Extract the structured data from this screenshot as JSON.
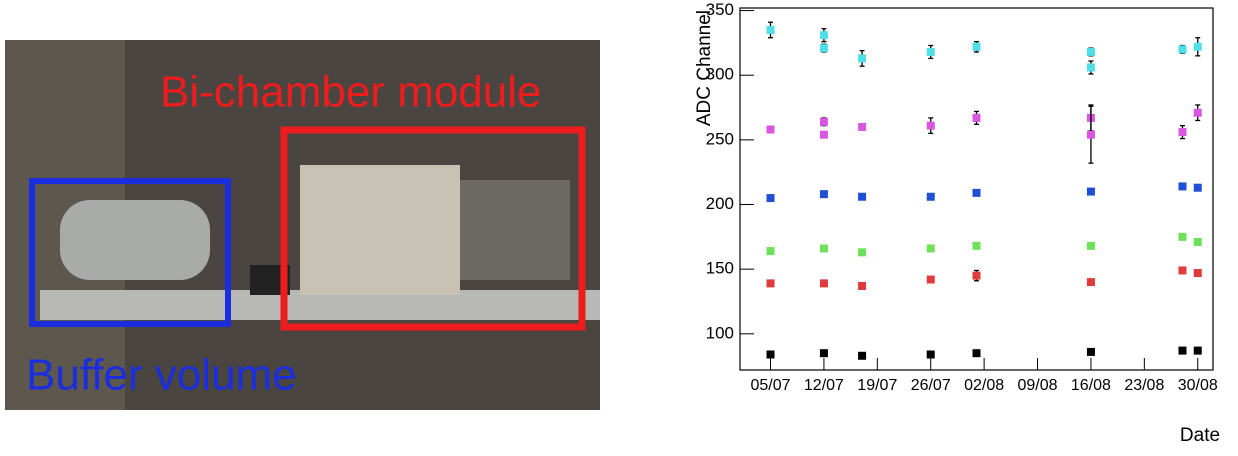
{
  "photo": {
    "labels": [
      "Bi-chamber module",
      "Buffer volume"
    ]
  },
  "chart_data": {
    "type": "scatter",
    "x_label": "Date",
    "y_label": "ADC Channel",
    "xlim": [
      "01/07",
      "01/09"
    ],
    "xticks": [
      "05/07",
      "12/07",
      "19/07",
      "26/07",
      "02/08",
      "09/08",
      "16/08",
      "23/08",
      "30/08"
    ],
    "ylim": [
      72,
      352
    ],
    "yticks": [
      100,
      150,
      200,
      250,
      300,
      350
    ],
    "series": [
      {
        "color": "#4ee0e8",
        "x": [
          "05/07",
          "12/07",
          "12/07",
          "17/07",
          "26/07",
          "01/08",
          "16/08",
          "16/08",
          "28/08",
          "30/08"
        ],
        "values": [
          335,
          331,
          321,
          313,
          318,
          322,
          318,
          306,
          320,
          322
        ],
        "errors": [
          6,
          5,
          3,
          6,
          5,
          4,
          3,
          5,
          3,
          7
        ]
      },
      {
        "color": "#d957e0",
        "x": [
          "05/07",
          "12/07",
          "12/07",
          "17/07",
          "26/07",
          "01/08",
          "16/08",
          "16/08",
          "28/08",
          "30/08"
        ],
        "values": [
          258,
          264,
          254,
          260,
          261,
          267,
          267,
          254,
          256,
          271
        ],
        "errors": [
          2,
          3,
          2,
          2,
          6,
          5,
          10,
          22,
          5,
          6
        ]
      },
      {
        "color": "#1f4fd6",
        "x": [
          "05/07",
          "12/07",
          "17/07",
          "26/07",
          "01/08",
          "16/08",
          "28/08",
          "30/08"
        ],
        "values": [
          205,
          208,
          206,
          206,
          209,
          210,
          214,
          213
        ]
      },
      {
        "color": "#6ee05a",
        "x": [
          "05/07",
          "12/07",
          "17/07",
          "26/07",
          "01/08",
          "16/08",
          "28/08",
          "30/08"
        ],
        "values": [
          164,
          166,
          163,
          166,
          168,
          168,
          175,
          171
        ]
      },
      {
        "color": "#e03b3b",
        "x": [
          "05/07",
          "12/07",
          "17/07",
          "26/07",
          "01/08",
          "16/08",
          "28/08",
          "30/08"
        ],
        "values": [
          139,
          139,
          137,
          142,
          145,
          140,
          149,
          147
        ],
        "errors": [
          2,
          2,
          2,
          2,
          4,
          2,
          2,
          2
        ]
      },
      {
        "color": "#000000",
        "x": [
          "05/07",
          "12/07",
          "17/07",
          "26/07",
          "01/08",
          "16/08",
          "28/08",
          "30/08"
        ],
        "values": [
          84,
          85,
          83,
          84,
          85,
          86,
          87,
          87
        ]
      }
    ]
  }
}
